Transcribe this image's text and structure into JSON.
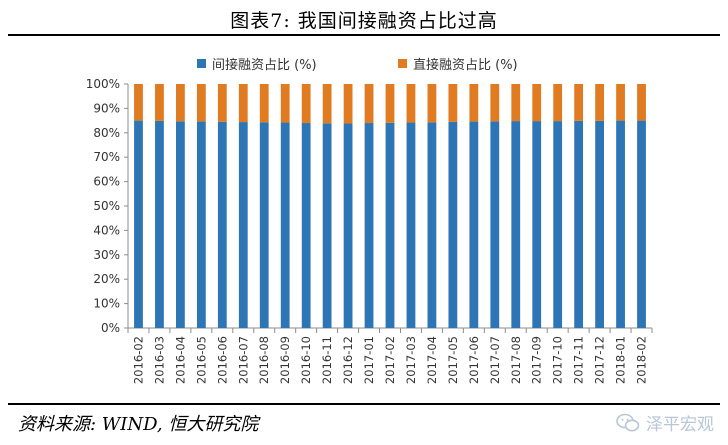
{
  "title": "图表7:   我国间接融资占比过高",
  "source": "资料来源: WIND, 恒大研究院",
  "watermark": "泽平宏观",
  "watermark_icon": "wechat-icon",
  "colors": {
    "indirect": "#2E75B6",
    "direct": "#E07B21",
    "axis": "#8c8c8c"
  },
  "chart_data": {
    "type": "bar",
    "stacked": true,
    "title": "",
    "xlabel": "",
    "ylabel": "",
    "ylim": [
      0,
      100
    ],
    "yticks": [
      "0%",
      "10%",
      "20%",
      "30%",
      "40%",
      "50%",
      "60%",
      "70%",
      "80%",
      "90%",
      "100%"
    ],
    "legend_position": "top",
    "grid": false,
    "categories": [
      "2016-02",
      "2016-03",
      "2016-04",
      "2016-05",
      "2016-06",
      "2016-07",
      "2016-08",
      "2016-09",
      "2016-10",
      "2016-11",
      "2016-12",
      "2017-01",
      "2017-02",
      "2017-03",
      "2017-04",
      "2017-05",
      "2017-06",
      "2017-07",
      "2017-08",
      "2017-09",
      "2017-10",
      "2017-11",
      "2017-12",
      "2018-01",
      "2018-02"
    ],
    "series": [
      {
        "name": "间接融资占比 (%)",
        "color": "#2E75B6",
        "values": [
          85.0,
          84.9,
          84.7,
          84.6,
          84.5,
          84.4,
          84.3,
          84.2,
          84.0,
          83.9,
          83.8,
          84.0,
          84.1,
          84.2,
          84.3,
          84.5,
          84.6,
          84.7,
          84.8,
          84.8,
          84.8,
          84.9,
          84.9,
          85.0,
          85.0
        ]
      },
      {
        "name": "直接融资占比 (%)",
        "color": "#E07B21",
        "values": [
          15.0,
          15.1,
          15.3,
          15.4,
          15.5,
          15.6,
          15.7,
          15.8,
          16.0,
          16.1,
          16.2,
          16.0,
          15.9,
          15.8,
          15.7,
          15.5,
          15.4,
          15.3,
          15.2,
          15.2,
          15.2,
          15.1,
          15.1,
          15.0,
          15.0
        ]
      }
    ]
  }
}
